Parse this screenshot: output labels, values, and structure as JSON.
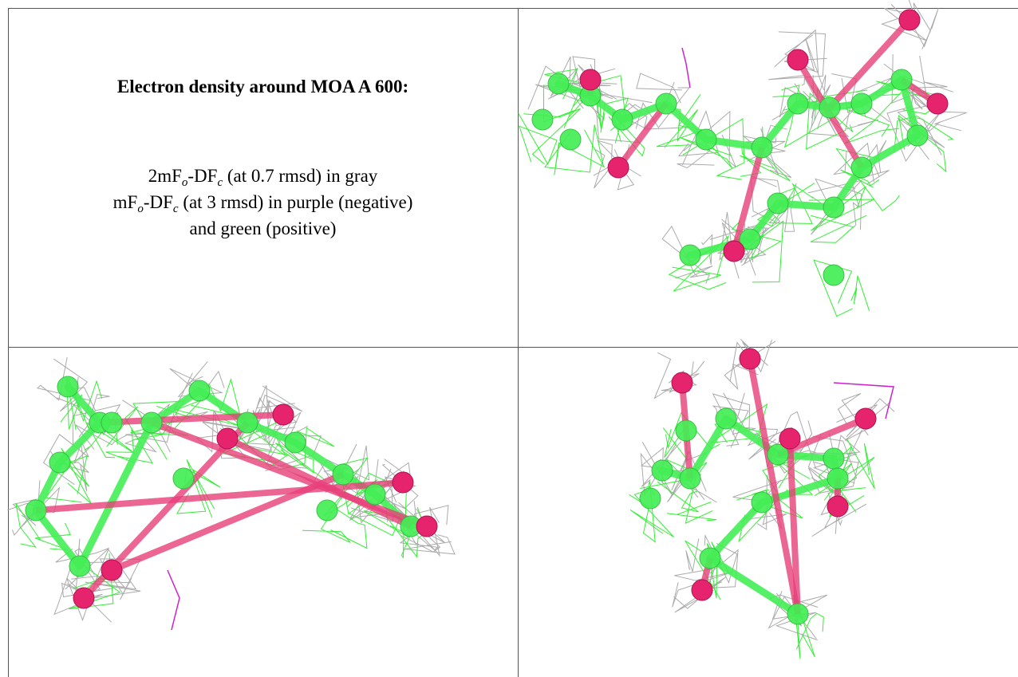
{
  "caption": {
    "title": "Electron density around MOA A 600:",
    "line1": [
      "2mF",
      "o",
      "-DF",
      "c",
      " (at 0.7 rmsd) in gray"
    ],
    "line2": [
      "mF",
      "o",
      "-DF",
      "c",
      " (at 3 rmsd) in purple (negative)"
    ],
    "line3": "and green (positive)"
  }
}
